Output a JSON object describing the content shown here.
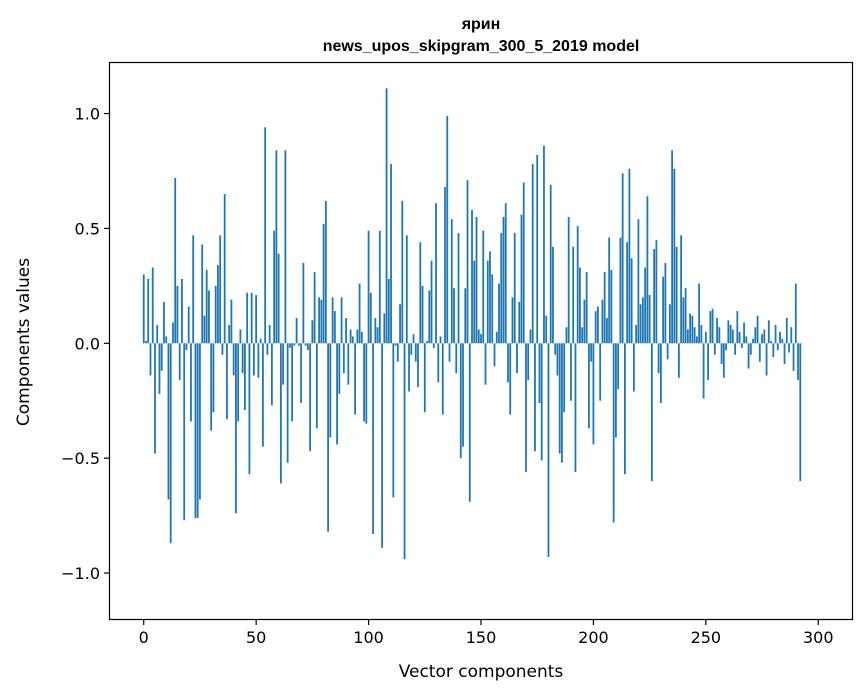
{
  "chart_data": {
    "type": "bar",
    "title": "ярин",
    "subtitle": "news_upos_skipgram_300_5_2019 model",
    "xlabel": "Vector components",
    "ylabel": "Components values",
    "xlim": [
      -15,
      315
    ],
    "ylim": [
      -1.2,
      1.22
    ],
    "xticks": [
      0,
      50,
      100,
      150,
      200,
      250,
      300
    ],
    "xtick_labels": [
      "0",
      "50",
      "100",
      "150",
      "200",
      "250",
      "300"
    ],
    "yticks": [
      -1.0,
      -0.5,
      0.0,
      0.5,
      1.0
    ],
    "ytick_labels": [
      "−1.0",
      "−0.5",
      "0.0",
      "0.5",
      "1.0"
    ],
    "grid": false,
    "bar_color": "#1f77b4",
    "values": [
      0.3,
      0.01,
      0.28,
      -0.14,
      0.33,
      -0.48,
      0.08,
      -0.22,
      -0.12,
      0.18,
      0.03,
      -0.68,
      -0.87,
      0.09,
      0.72,
      0.25,
      -0.16,
      0.28,
      -0.77,
      -0.03,
      0.16,
      -0.34,
      0.47,
      -0.76,
      -0.76,
      -0.68,
      0.43,
      0.12,
      0.32,
      0.23,
      -0.38,
      -0.3,
      0.25,
      0.34,
      0.47,
      -0.05,
      0.65,
      -0.33,
      0.08,
      0.19,
      -0.14,
      -0.74,
      -0.34,
      0.06,
      -0.13,
      -0.29,
      0.22,
      -0.57,
      0.22,
      -0.14,
      0.21,
      -0.15,
      0.02,
      -0.45,
      0.94,
      -0.05,
      0.08,
      -0.27,
      0.49,
      0.84,
      0.39,
      -0.61,
      -0.18,
      0.84,
      -0.52,
      -0.02,
      -0.34,
      -0.01,
      0.11,
      -0.01,
      -0.26,
      0.35,
      -0.01,
      -0.03,
      -0.47,
      0.1,
      0.31,
      -0.37,
      0.2,
      0.19,
      0.52,
      0.62,
      -0.82,
      -0.41,
      0.2,
      0.14,
      -0.44,
      -0.22,
      0.2,
      -0.13,
      0.11,
      -0.18,
      0.06,
      0.03,
      -0.31,
      0.06,
      0.26,
      0.05,
      -0.34,
      -0.35,
      0.49,
      0.22,
      -0.83,
      0.11,
      0.07,
      0.49,
      -0.89,
      0.13,
      1.11,
      0.28,
      0.78,
      -0.67,
      -0.01,
      -0.08,
      0.17,
      0.62,
      -0.94,
      0.47,
      -0.21,
      -0.05,
      0.04,
      -0.08,
      -0.19,
      0.44,
      0.25,
      -0.3,
      0.01,
      0.23,
      0.36,
      -0.02,
      0.61,
      -0.17,
      0.03,
      -0.31,
      0.68,
      0.99,
      -0.08,
      0.54,
      0.24,
      -0.13,
      0.48,
      -0.5,
      -0.45,
      0.24,
      0.71,
      -0.69,
      0.58,
      0.36,
      0.55,
      0.06,
      0.04,
      0.49,
      -0.18,
      0.36,
      0.4,
      0.3,
      -0.1,
      0.05,
      0.26,
      0.48,
      0.55,
      0.61,
      -0.17,
      -0.31,
      0.2,
      0.48,
      -0.13,
      0.18,
      0.56,
      0.7,
      -0.56,
      -0.16,
      0.06,
      0.78,
      -0.47,
      0.82,
      -0.26,
      -0.51,
      0.86,
      0.12,
      -0.93,
      0.69,
      0.42,
      -0.05,
      -0.14,
      -0.48,
      -0.52,
      -0.3,
      0.07,
      0.55,
      -0.25,
      0.42,
      -0.56,
      0.51,
      0.33,
      0.07,
      0.19,
      0.31,
      -0.37,
      -0.08,
      -0.44,
      0.14,
      0.16,
      -0.25,
      0.19,
      0.31,
      0.11,
      0.46,
      0.32,
      -0.78,
      -0.41,
      -0.2,
      0.46,
      0.74,
      -0.57,
      0.44,
      0.76,
      0.37,
      -0.21,
      0.08,
      0.54,
      0.17,
      0.2,
      0.33,
      0.64,
      0.21,
      -0.6,
      0.41,
      0.45,
      -0.13,
      -0.26,
      0.29,
      0.35,
      -0.07,
      0.17,
      0.84,
      0.76,
      0.42,
      -0.15,
      0.47,
      0.2,
      0.24,
      0.06,
      0.13,
      0.12,
      0.07,
      0.03,
      0.26,
      0.08,
      -0.24,
      0.05,
      -0.16,
      0.14,
      0.15,
      -0.05,
      0.11,
      0.07,
      -0.09,
      -0.15,
      -0.03,
      0.1,
      0.08,
      0.06,
      -0.05,
      0.14,
      0.05,
      -0.02,
      0.09,
      0.03,
      -0.11,
      -0.05,
      0.02,
      0.07,
      0.12,
      -0.08,
      0.04,
      0.06,
      -0.14,
      0.1,
      0.01,
      -0.06,
      0.08,
      -0.03,
      0.05,
      0.02,
      -0.09,
      0.11,
      -0.04,
      0.07,
      -0.12,
      0.26,
      -0.16,
      -0.6
    ]
  }
}
